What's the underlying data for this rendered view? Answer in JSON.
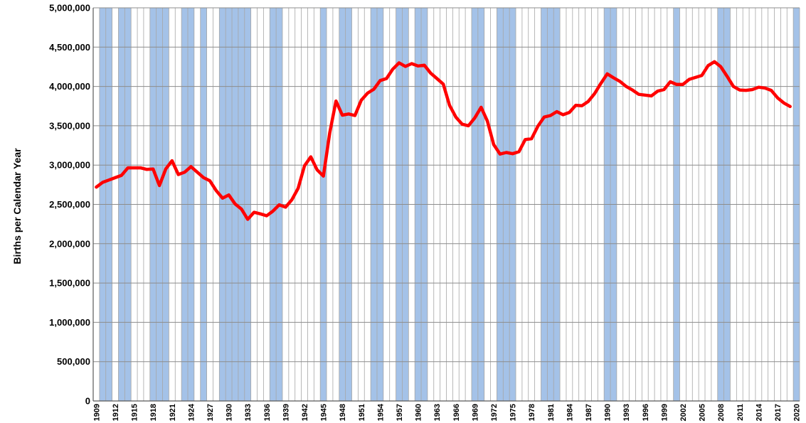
{
  "chart_data": {
    "type": "line",
    "title": "",
    "xlabel": "",
    "ylabel": "Births per Calendar Year",
    "xlim": [
      1909,
      2020
    ],
    "ylim": [
      0,
      5000000
    ],
    "grid": true,
    "legend": "none",
    "line_color": "#ff0000",
    "recession_color": "#a4c2e8",
    "y_tick_labels": [
      "0",
      "500,000",
      "1,000,000",
      "1,500,000",
      "2,000,000",
      "2,500,000",
      "3,000,000",
      "3,500,000",
      "4,000,000",
      "4,500,000",
      "5,000,000"
    ],
    "x_tick_labels": [
      "1909",
      "1912",
      "1915",
      "1918",
      "1921",
      "1924",
      "1927",
      "1930",
      "1933",
      "1936",
      "1939",
      "1942",
      "1945",
      "1948",
      "1951",
      "1954",
      "1957",
      "1960",
      "1963",
      "1966",
      "1969",
      "1972",
      "1975",
      "1978",
      "1981",
      "1984",
      "1987",
      "1990",
      "1993",
      "1996",
      "1999",
      "2002",
      "2005",
      "2008",
      "2011",
      "2014",
      "2017",
      "2020"
    ],
    "recession_years": [
      1910,
      1911,
      1913,
      1914,
      1918,
      1919,
      1920,
      1923,
      1924,
      1926,
      1929,
      1930,
      1931,
      1932,
      1933,
      1937,
      1938,
      1945,
      1948,
      1949,
      1953,
      1954,
      1957,
      1958,
      1960,
      1961,
      1969,
      1970,
      1973,
      1974,
      1975,
      1980,
      1981,
      1982,
      1990,
      1991,
      2001,
      2008,
      2009,
      2020
    ],
    "series": [
      {
        "x": [
          1909,
          1910,
          1911,
          1912,
          1913,
          1914,
          1915,
          1916,
          1917,
          1918,
          1919,
          1920,
          1921,
          1922,
          1923,
          1924,
          1925,
          1926,
          1927,
          1928,
          1929,
          1930,
          1931,
          1932,
          1933,
          1934,
          1935,
          1936,
          1937,
          1938,
          1939,
          1940,
          1941,
          1942,
          1943,
          1944,
          1945,
          1946,
          1947,
          1948,
          1949,
          1950,
          1951,
          1952,
          1953,
          1954,
          1955,
          1956,
          1957,
          1958,
          1959,
          1960,
          1961,
          1962,
          1963,
          1964,
          1965,
          1966,
          1967,
          1968,
          1969,
          1970,
          1971,
          1972,
          1973,
          1974,
          1975,
          1976,
          1977,
          1978,
          1979,
          1980,
          1981,
          1982,
          1983,
          1984,
          1985,
          1986,
          1987,
          1988,
          1989,
          1990,
          1991,
          1992,
          1993,
          1994,
          1995,
          1996,
          1997,
          1998,
          1999,
          2000,
          2001,
          2002,
          2003,
          2004,
          2005,
          2006,
          2007,
          2008,
          2009,
          2010,
          2011,
          2012,
          2013,
          2014,
          2015,
          2016,
          2017,
          2018,
          2019
        ],
        "y": [
          2720000,
          2780000,
          2810000,
          2840000,
          2870000,
          2965000,
          2965000,
          2965000,
          2945000,
          2950000,
          2740000,
          2950000,
          3055000,
          2880000,
          2910000,
          2980000,
          2910000,
          2840000,
          2800000,
          2675000,
          2580000,
          2620000,
          2505000,
          2440000,
          2310000,
          2400000,
          2380000,
          2355000,
          2415000,
          2495000,
          2465000,
          2560000,
          2705000,
          2990000,
          3105000,
          2940000,
          2860000,
          3410000,
          3815000,
          3635000,
          3650000,
          3630000,
          3825000,
          3915000,
          3965000,
          4075000,
          4100000,
          4220000,
          4300000,
          4255000,
          4290000,
          4260000,
          4270000,
          4170000,
          4100000,
          4030000,
          3760000,
          3610000,
          3520000,
          3500000,
          3600000,
          3735000,
          3560000,
          3260000,
          3140000,
          3160000,
          3145000,
          3170000,
          3325000,
          3335000,
          3495000,
          3610000,
          3630000,
          3680000,
          3640000,
          3670000,
          3760000,
          3755000,
          3810000,
          3910000,
          4040000,
          4160000,
          4110000,
          4065000,
          4000000,
          3955000,
          3900000,
          3890000,
          3880000,
          3940000,
          3960000,
          4060000,
          4025000,
          4025000,
          4090000,
          4115000,
          4140000,
          4265000,
          4315000,
          4250000,
          4130000,
          4000000,
          3955000,
          3950000,
          3960000,
          3990000,
          3980000,
          3950000,
          3855000,
          3790000,
          3745000
        ]
      }
    ]
  }
}
